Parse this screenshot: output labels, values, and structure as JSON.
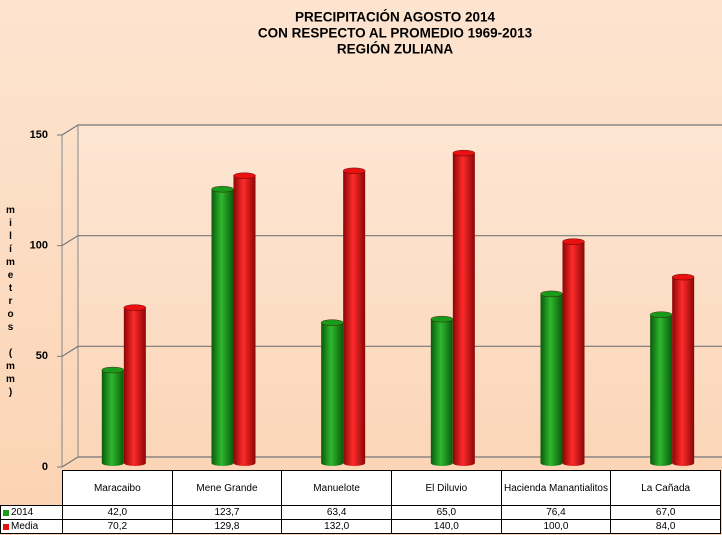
{
  "chart_data": {
    "type": "bar3d",
    "title": [
      "PRECIPITACIÓN AGOSTO 2014",
      "CON RESPECTO AL PROMEDIO 1969-2013",
      "REGIÓN ZULIANA"
    ],
    "y_label": "milímetros (mm)",
    "categories": [
      "Maracaibo",
      "Mene Grande",
      "Manuelote",
      "El Diluvio",
      "Hacienda Manantialitos",
      "La Cañada"
    ],
    "series": [
      {
        "name": "2014",
        "color": "#1a9a1a",
        "values": [
          42.0,
          123.7,
          63.4,
          65.0,
          76.4,
          67.0
        ],
        "value_labels": [
          "42,0",
          "123,7",
          "63,4",
          "65,0",
          "76,4",
          "67,0"
        ]
      },
      {
        "name": "Media",
        "color": "#e81010",
        "values": [
          70.2,
          129.8,
          132.0,
          140.0,
          100.0,
          84.0
        ],
        "value_labels": [
          "70,2",
          "129,8",
          "132,0",
          "140,0",
          "100,0",
          "84,0"
        ]
      }
    ],
    "ylim": [
      0,
      150
    ],
    "yticks": [
      0,
      50,
      100,
      150
    ],
    "grid": true
  }
}
